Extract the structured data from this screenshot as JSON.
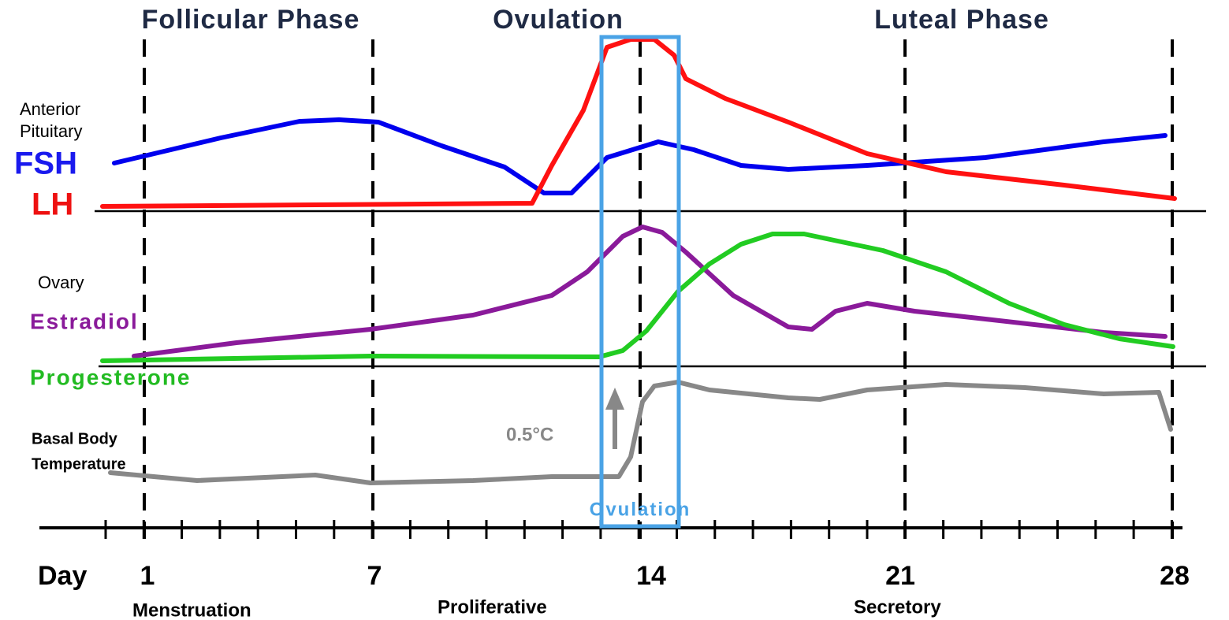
{
  "phases": [
    "Follicular Phase",
    "Ovulation",
    "Luteal Phase"
  ],
  "panels": [
    {
      "title": [
        "Anterior",
        "Pituitary"
      ],
      "series": [
        "FSH",
        "LH"
      ]
    },
    {
      "title": [
        "Ovary"
      ],
      "series": [
        "Estradiol",
        "Progesterone"
      ]
    },
    {
      "title": [
        "Basal Body",
        "Temperature"
      ]
    }
  ],
  "temperature_rise": "0.5°C",
  "ovulation_label": "Ovulation",
  "day_axis": {
    "title": "Day",
    "ticks": [
      "1",
      "7",
      "14",
      "21",
      "28"
    ]
  },
  "endometrium": [
    "Menstruation",
    "Proliferative",
    "Secretory"
  ]
}
